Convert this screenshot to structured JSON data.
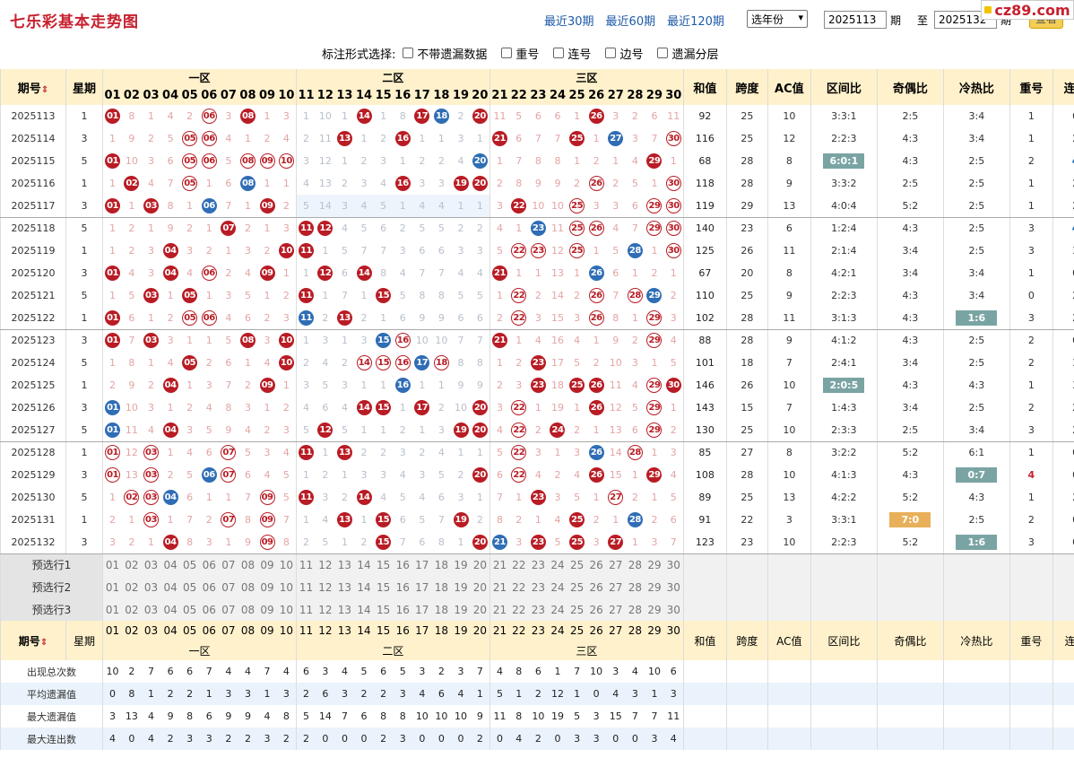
{
  "header": {
    "title": "七乐彩基本走势图",
    "links": [
      "最近30期",
      "最近60期",
      "最近120期"
    ],
    "year_select": "选年份",
    "from": "2025113",
    "mid_label": "期",
    "to_label": "至",
    "to": "2025132",
    "end_label": "期",
    "query": "查看",
    "logo": "cz89.com"
  },
  "options": {
    "label": "标注形式选择:",
    "items": [
      "不带遗漏数据",
      "重号",
      "连号",
      "边号",
      "遗漏分层"
    ]
  },
  "table": {
    "col_issue": "期号",
    "col_week": "星期",
    "zones": [
      "一区",
      "二区",
      "三区"
    ],
    "cols_right": [
      "和值",
      "跨度",
      "AC值",
      "区间比",
      "奇偶比",
      "冷热比",
      "重号",
      "连号"
    ],
    "nums": [
      "01",
      "02",
      "03",
      "04",
      "05",
      "06",
      "07",
      "08",
      "09",
      "10",
      "11",
      "12",
      "13",
      "14",
      "15",
      "16",
      "17",
      "18",
      "19",
      "20",
      "21",
      "22",
      "23",
      "24",
      "25",
      "26",
      "27",
      "28",
      "29",
      "30"
    ],
    "rows": [
      {
        "issue": "2025113",
        "week": "1",
        "cells": [
          "B01",
          "8",
          "1",
          "4",
          "2",
          "R06",
          "3",
          "B08",
          "1",
          "3",
          "1",
          "10",
          "1",
          "B14",
          "1",
          "8",
          "B17",
          "L18",
          "2",
          "B20",
          "11",
          "5",
          "6",
          "6",
          "1",
          "B26",
          "3",
          "2",
          "6",
          "11"
        ],
        "sum": "92",
        "span": "25",
        "ac": "10",
        "zone": "3:3:1",
        "oe": "2:5",
        "hc": "3:4",
        "rep": "1",
        "con": "0"
      },
      {
        "issue": "2025114",
        "week": "3",
        "cells": [
          "1",
          "9",
          "2",
          "5",
          "R05",
          "R06",
          "4",
          "1",
          "2",
          "4",
          "2",
          "11",
          "B13",
          "1",
          "2",
          "B16",
          "1",
          "1",
          "3",
          "1",
          "B21",
          "6",
          "7",
          "7",
          "B25",
          "1",
          "L27",
          "3",
          "7",
          "R30"
        ],
        "sum": "116",
        "span": "25",
        "ac": "12",
        "zone": "2:2:3",
        "oe": "4:3",
        "hc": "3:4",
        "rep": "1",
        "con": "2"
      },
      {
        "issue": "2025115",
        "week": "5",
        "cells": [
          "B01",
          "10",
          "3",
          "6",
          "R05",
          "R06",
          "5",
          "R08",
          "R09",
          "R10",
          "3",
          "12",
          "1",
          "2",
          "3",
          "1",
          "2",
          "2",
          "4",
          "L20",
          "1",
          "7",
          "8",
          "8",
          "1",
          "2",
          "1",
          "4",
          "B29",
          "1"
        ],
        "sum": "68",
        "span": "28",
        "ac": "8",
        "zone": "T6:0:1",
        "oe": "4:3",
        "hc": "2:5",
        "rep": "2",
        "con": "B4"
      },
      {
        "issue": "2025116",
        "week": "1",
        "cells": [
          "1",
          "B02",
          "4",
          "7",
          "R05",
          "1",
          "6",
          "L08",
          "1",
          "1",
          "4",
          "13",
          "2",
          "3",
          "4",
          "B16",
          "3",
          "3",
          "B19",
          "B20",
          "2",
          "8",
          "9",
          "9",
          "2",
          "R26",
          "2",
          "5",
          "1",
          "R30"
        ],
        "sum": "118",
        "span": "28",
        "ac": "9",
        "zone": "3:3:2",
        "oe": "2:5",
        "hc": "2:5",
        "rep": "1",
        "con": "2"
      },
      {
        "issue": "2025117",
        "week": "3",
        "cells": [
          "B01",
          "1",
          "B03",
          "8",
          "1",
          "L06",
          "7",
          "1",
          "B09",
          "2",
          "5",
          "14",
          "3",
          "4",
          "5",
          "1",
          "4",
          "4",
          "1",
          "1",
          "3",
          "B22",
          "10",
          "10",
          "R25",
          "3",
          "3",
          "6",
          "R29",
          "R30"
        ],
        "sum": "119",
        "span": "29",
        "ac": "13",
        "zone": "4:0:4",
        "oe": "5:2",
        "hc": "2:5",
        "rep": "1",
        "con": "2",
        "hl": 1
      },
      {
        "issue": "2025118",
        "week": "5",
        "cells": [
          "1",
          "2",
          "1",
          "9",
          "2",
          "1",
          "B07",
          "2",
          "1",
          "3",
          "B11",
          "B12",
          "4",
          "5",
          "6",
          "2",
          "5",
          "5",
          "2",
          "2",
          "4",
          "1",
          "L23",
          "11",
          "R25",
          "R26",
          "4",
          "7",
          "R29",
          "R30"
        ],
        "sum": "140",
        "span": "23",
        "ac": "6",
        "zone": "1:2:4",
        "oe": "4:3",
        "hc": "2:5",
        "rep": "3",
        "con": "B4"
      },
      {
        "issue": "2025119",
        "week": "1",
        "cells": [
          "1",
          "2",
          "3",
          "B04",
          "3",
          "2",
          "1",
          "3",
          "2",
          "B10",
          "B11",
          "1",
          "5",
          "7",
          "7",
          "3",
          "6",
          "6",
          "3",
          "3",
          "5",
          "R22",
          "R23",
          "12",
          "R25",
          "1",
          "5",
          "L28",
          "1",
          "R30"
        ],
        "sum": "125",
        "span": "26",
        "ac": "11",
        "zone": "2:1:4",
        "oe": "3:4",
        "hc": "2:5",
        "rep": "3",
        "con": "3"
      },
      {
        "issue": "2025120",
        "week": "3",
        "cells": [
          "B01",
          "4",
          "3",
          "B04",
          "4",
          "R06",
          "2",
          "4",
          "B09",
          "1",
          "1",
          "B12",
          "6",
          "B14",
          "8",
          "4",
          "7",
          "7",
          "4",
          "4",
          "B21",
          "1",
          "1",
          "13",
          "1",
          "L26",
          "6",
          "1",
          "2",
          "1"
        ],
        "sum": "67",
        "span": "20",
        "ac": "8",
        "zone": "4:2:1",
        "oe": "3:4",
        "hc": "3:4",
        "rep": "1",
        "con": "0"
      },
      {
        "issue": "2025121",
        "week": "5",
        "cells": [
          "1",
          "5",
          "B03",
          "1",
          "B05",
          "1",
          "3",
          "5",
          "1",
          "2",
          "B11",
          "1",
          "7",
          "1",
          "B15",
          "5",
          "8",
          "8",
          "5",
          "5",
          "1",
          "R22",
          "2",
          "14",
          "2",
          "R26",
          "7",
          "R28",
          "L29",
          "2"
        ],
        "sum": "110",
        "span": "25",
        "ac": "9",
        "zone": "2:2:3",
        "oe": "4:3",
        "hc": "3:4",
        "rep": "0",
        "con": "2"
      },
      {
        "issue": "2025122",
        "week": "1",
        "cells": [
          "B01",
          "6",
          "1",
          "2",
          "R05",
          "R06",
          "4",
          "6",
          "2",
          "3",
          "L11",
          "2",
          "B13",
          "2",
          "1",
          "6",
          "9",
          "9",
          "6",
          "6",
          "2",
          "R22",
          "3",
          "15",
          "3",
          "R26",
          "8",
          "1",
          "R29",
          "3"
        ],
        "sum": "102",
        "span": "28",
        "ac": "11",
        "zone": "3:1:3",
        "oe": "4:3",
        "hc": "T1:6",
        "rep": "3",
        "con": "2"
      },
      {
        "issue": "2025123",
        "week": "3",
        "cells": [
          "B01",
          "7",
          "B03",
          "3",
          "1",
          "1",
          "5",
          "B08",
          "3",
          "B10",
          "1",
          "3",
          "1",
          "3",
          "L15",
          "R16",
          "10",
          "10",
          "7",
          "7",
          "B21",
          "1",
          "4",
          "16",
          "4",
          "1",
          "9",
          "2",
          "R29",
          "4"
        ],
        "sum": "88",
        "span": "28",
        "ac": "9",
        "zone": "4:1:2",
        "oe": "4:3",
        "hc": "2:5",
        "rep": "2",
        "con": "0"
      },
      {
        "issue": "2025124",
        "week": "5",
        "cells": [
          "1",
          "8",
          "1",
          "4",
          "B05",
          "2",
          "6",
          "1",
          "4",
          "B10",
          "2",
          "4",
          "2",
          "R14",
          "R15",
          "R16",
          "L17",
          "R18",
          "8",
          "8",
          "1",
          "2",
          "B23",
          "17",
          "5",
          "2",
          "10",
          "3",
          "1",
          "5"
        ],
        "sum": "101",
        "span": "18",
        "ac": "7",
        "zone": "2:4:1",
        "oe": "3:4",
        "hc": "2:5",
        "rep": "2",
        "con": "3"
      },
      {
        "issue": "2025125",
        "week": "1",
        "cells": [
          "2",
          "9",
          "2",
          "B04",
          "1",
          "3",
          "7",
          "2",
          "B09",
          "1",
          "3",
          "5",
          "3",
          "1",
          "1",
          "L16",
          "1",
          "1",
          "9",
          "9",
          "2",
          "3",
          "B23",
          "18",
          "B25",
          "B26",
          "11",
          "4",
          "R29",
          "B30"
        ],
        "sum": "146",
        "span": "26",
        "ac": "10",
        "zone": "T2:0:5",
        "oe": "4:3",
        "hc": "4:3",
        "rep": "1",
        "con": "3"
      },
      {
        "issue": "2025126",
        "week": "3",
        "cells": [
          "L01",
          "10",
          "3",
          "1",
          "2",
          "4",
          "8",
          "3",
          "1",
          "2",
          "4",
          "6",
          "4",
          "B14",
          "B15",
          "1",
          "B17",
          "2",
          "10",
          "B20",
          "3",
          "R22",
          "1",
          "19",
          "1",
          "B26",
          "12",
          "5",
          "R29",
          "1"
        ],
        "sum": "143",
        "span": "15",
        "ac": "7",
        "zone": "1:4:3",
        "oe": "3:4",
        "hc": "2:5",
        "rep": "2",
        "con": "2"
      },
      {
        "issue": "2025127",
        "week": "5",
        "cells": [
          "L01",
          "11",
          "4",
          "B04",
          "3",
          "5",
          "9",
          "4",
          "2",
          "3",
          "5",
          "B12",
          "5",
          "1",
          "1",
          "2",
          "1",
          "3",
          "B19",
          "B20",
          "4",
          "R22",
          "2",
          "B24",
          "2",
          "1",
          "13",
          "6",
          "R29",
          "2"
        ],
        "sum": "130",
        "span": "25",
        "ac": "10",
        "zone": "2:3:3",
        "oe": "2:5",
        "hc": "3:4",
        "rep": "3",
        "con": "2"
      },
      {
        "issue": "2025128",
        "week": "1",
        "cells": [
          "R01",
          "12",
          "R03",
          "1",
          "4",
          "6",
          "R07",
          "5",
          "3",
          "4",
          "B11",
          "1",
          "B13",
          "2",
          "2",
          "3",
          "2",
          "4",
          "1",
          "1",
          "5",
          "R22",
          "3",
          "1",
          "3",
          "L26",
          "14",
          "R28",
          "1",
          "3"
        ],
        "sum": "85",
        "span": "27",
        "ac": "8",
        "zone": "3:2:2",
        "oe": "5:2",
        "hc": "6:1",
        "rep": "1",
        "con": "0"
      },
      {
        "issue": "2025129",
        "week": "3",
        "cells": [
          "R01",
          "13",
          "R03",
          "2",
          "5",
          "L06",
          "R07",
          "6",
          "4",
          "5",
          "1",
          "2",
          "1",
          "3",
          "3",
          "4",
          "3",
          "5",
          "2",
          "B20",
          "6",
          "R22",
          "4",
          "2",
          "4",
          "B26",
          "15",
          "1",
          "B29",
          "4"
        ],
        "sum": "108",
        "span": "28",
        "ac": "10",
        "zone": "4:1:3",
        "oe": "4:3",
        "hc": "T0:7",
        "rep": "R4",
        "con": "0"
      },
      {
        "issue": "2025130",
        "week": "5",
        "cells": [
          "1",
          "R02",
          "R03",
          "L04",
          "6",
          "1",
          "1",
          "7",
          "R09",
          "5",
          "B11",
          "3",
          "2",
          "B14",
          "4",
          "5",
          "4",
          "6",
          "3",
          "1",
          "7",
          "1",
          "B23",
          "3",
          "5",
          "1",
          "R27",
          "2",
          "1",
          "5"
        ],
        "sum": "89",
        "span": "25",
        "ac": "13",
        "zone": "4:2:2",
        "oe": "5:2",
        "hc": "4:3",
        "rep": "1",
        "con": "2"
      },
      {
        "issue": "2025131",
        "week": "1",
        "cells": [
          "2",
          "1",
          "R03",
          "1",
          "7",
          "2",
          "R07",
          "8",
          "R09",
          "7",
          "1",
          "4",
          "B13",
          "1",
          "B15",
          "6",
          "5",
          "7",
          "B19",
          "2",
          "8",
          "2",
          "1",
          "4",
          "B25",
          "2",
          "1",
          "L28",
          "2",
          "6"
        ],
        "sum": "91",
        "span": "22",
        "ac": "3",
        "zone": "3:3:1",
        "oe": "O7:0",
        "hc": "2:5",
        "rep": "2",
        "con": "0"
      },
      {
        "issue": "2025132",
        "week": "3",
        "cells": [
          "3",
          "2",
          "1",
          "B04",
          "8",
          "3",
          "1",
          "9",
          "R09",
          "8",
          "2",
          "5",
          "1",
          "2",
          "B15",
          "7",
          "6",
          "8",
          "1",
          "B20",
          "L21",
          "3",
          "B23",
          "5",
          "B25",
          "3",
          "B27",
          "1",
          "3",
          "7"
        ],
        "sum": "123",
        "span": "23",
        "ac": "10",
        "zone": "2:2:3",
        "oe": "5:2",
        "hc": "T1:6",
        "rep": "3",
        "con": "0"
      }
    ],
    "pre_labels": [
      "预选行1",
      "预选行2",
      "预选行3"
    ],
    "stats": [
      {
        "label": "出现总次数",
        "vals": [
          "10",
          "2",
          "7",
          "6",
          "6",
          "7",
          "4",
          "4",
          "7",
          "4",
          "6",
          "3",
          "4",
          "5",
          "6",
          "5",
          "3",
          "2",
          "3",
          "7",
          "4",
          "8",
          "6",
          "1",
          "7",
          "10",
          "3",
          "4",
          "10",
          "6"
        ]
      },
      {
        "label": "平均遗漏值",
        "vals": [
          "0",
          "8",
          "1",
          "2",
          "2",
          "1",
          "3",
          "3",
          "1",
          "3",
          "2",
          "6",
          "3",
          "2",
          "2",
          "3",
          "4",
          "6",
          "4",
          "1",
          "5",
          "1",
          "2",
          "12",
          "1",
          "0",
          "4",
          "3",
          "1",
          "3"
        ]
      },
      {
        "label": "最大遗漏值",
        "vals": [
          "3",
          "13",
          "4",
          "9",
          "8",
          "6",
          "9",
          "9",
          "4",
          "8",
          "5",
          "14",
          "7",
          "6",
          "8",
          "8",
          "10",
          "10",
          "10",
          "9",
          "11",
          "8",
          "10",
          "19",
          "5",
          "3",
          "15",
          "7",
          "7",
          "11"
        ]
      },
      {
        "label": "最大连出数",
        "vals": [
          "4",
          "0",
          "4",
          "2",
          "3",
          "3",
          "2",
          "2",
          "3",
          "2",
          "2",
          "0",
          "0",
          "0",
          "2",
          "3",
          "0",
          "0",
          "0",
          "2",
          "0",
          "4",
          "2",
          "0",
          "3",
          "3",
          "0",
          "0",
          "3",
          "4"
        ]
      }
    ]
  }
}
